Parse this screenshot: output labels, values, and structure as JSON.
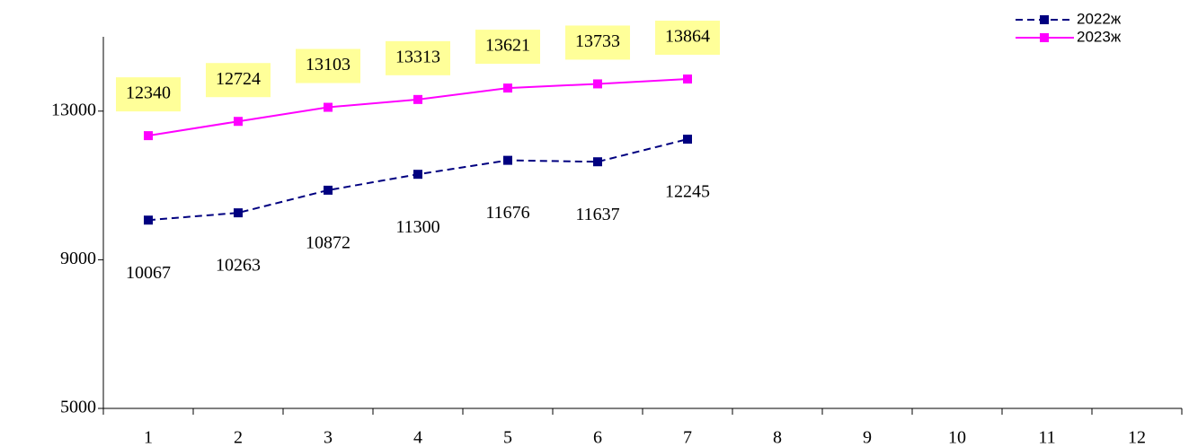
{
  "chart_data": {
    "type": "line",
    "categories": [
      1,
      2,
      3,
      4,
      5,
      6,
      7,
      8,
      9,
      10,
      11,
      12
    ],
    "series": [
      {
        "name": "2022ж",
        "color": "#000080",
        "dashed": true,
        "values": [
          10067,
          10263,
          10872,
          11300,
          11676,
          11637,
          12245,
          null,
          null,
          null,
          null,
          null
        ]
      },
      {
        "name": "2023ж",
        "color": "#ff00ff",
        "dashed": false,
        "label_background": "#ffff99",
        "values": [
          12340,
          12724,
          13103,
          13313,
          13621,
          13733,
          13864,
          null,
          null,
          null,
          null,
          null
        ]
      }
    ],
    "ylim": [
      5000,
      15000
    ],
    "yticks": [
      5000,
      9000,
      13000
    ],
    "grid": false,
    "legend": "top-right"
  }
}
